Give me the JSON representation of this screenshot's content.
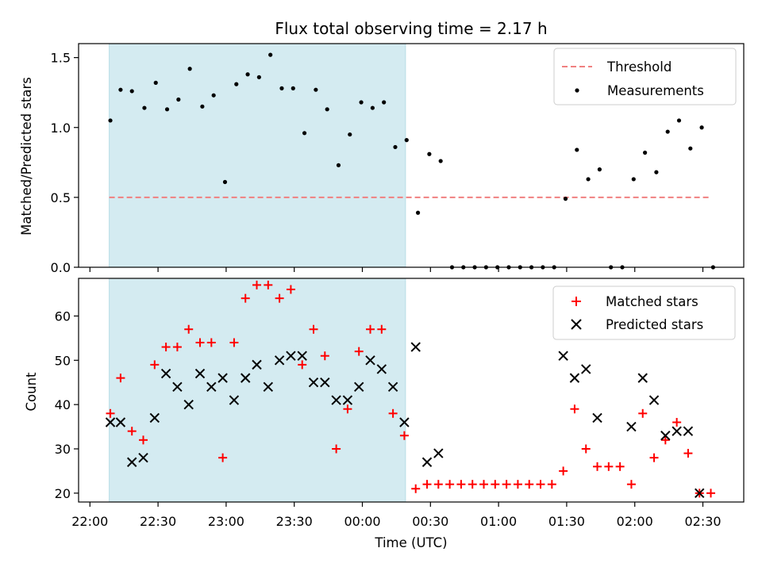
{
  "chart_data": {
    "type": "scatter",
    "title": "Flux total observing time = 2.17 h",
    "xlabel": "Time (UTC)",
    "x_tick_labels": [
      "22:00",
      "22:30",
      "23:00",
      "23:30",
      "00:00",
      "00:30",
      "01:00",
      "01:30",
      "02:00",
      "02:30"
    ],
    "x_tick_minutes": [
      0,
      30,
      60,
      90,
      120,
      150,
      180,
      210,
      240,
      270
    ],
    "xlim_minutes": [
      -5,
      288
    ],
    "shaded_span_minutes": [
      8.5,
      139
    ],
    "shaded_color": "#d4ebf1",
    "top_panel": {
      "ylabel": "Matched/Predicted stars",
      "ylim": [
        0,
        1.6
      ],
      "yticks": [
        "0.0",
        "0.5",
        "1.0",
        "1.5"
      ],
      "ytick_values": [
        0,
        0.5,
        1.0,
        1.5
      ],
      "threshold": {
        "name": "Threshold",
        "value": 0.5,
        "x_range_minutes": [
          8.5,
          273
        ],
        "color": "#f08080"
      },
      "measurements": {
        "name": "Measurements",
        "color": "#000000",
        "points": [
          [
            9,
            1.05
          ],
          [
            13.5,
            1.27
          ],
          [
            18.5,
            1.26
          ],
          [
            24,
            1.14
          ],
          [
            29,
            1.32
          ],
          [
            34,
            1.13
          ],
          [
            39,
            1.2
          ],
          [
            44,
            1.42
          ],
          [
            49.5,
            1.15
          ],
          [
            54.5,
            1.23
          ],
          [
            59.5,
            0.61
          ],
          [
            64.5,
            1.31
          ],
          [
            69.5,
            1.38
          ],
          [
            74.5,
            1.36
          ],
          [
            79.5,
            1.52
          ],
          [
            84.5,
            1.28
          ],
          [
            89.5,
            1.28
          ],
          [
            94.5,
            0.96
          ],
          [
            99.5,
            1.27
          ],
          [
            104.5,
            1.13
          ],
          [
            109.5,
            0.73
          ],
          [
            114.5,
            0.95
          ],
          [
            119.5,
            1.18
          ],
          [
            124.5,
            1.14
          ],
          [
            129.5,
            1.18
          ],
          [
            134.5,
            0.86
          ],
          [
            139.5,
            0.91
          ],
          [
            144.5,
            0.39
          ],
          [
            149.5,
            0.81
          ],
          [
            154.5,
            0.76
          ],
          [
            159.5,
            0
          ],
          [
            164.5,
            0
          ],
          [
            169.5,
            0
          ],
          [
            174.5,
            0
          ],
          [
            179.5,
            0
          ],
          [
            184.5,
            0
          ],
          [
            189.5,
            0
          ],
          [
            194.5,
            0
          ],
          [
            199.5,
            0
          ],
          [
            204.5,
            0
          ],
          [
            209.5,
            0.49
          ],
          [
            214.5,
            0.84
          ],
          [
            219.5,
            0.63
          ],
          [
            224.5,
            0.7
          ],
          [
            229.5,
            0
          ],
          [
            234.5,
            0
          ],
          [
            239.5,
            0.63
          ],
          [
            244.5,
            0.82
          ],
          [
            249.5,
            0.68
          ],
          [
            254.5,
            0.97
          ],
          [
            259.5,
            1.05
          ],
          [
            264.5,
            0.85
          ],
          [
            269.5,
            1.0
          ],
          [
            274.5,
            0
          ]
        ]
      },
      "legend_position": "upper-right"
    },
    "bottom_panel": {
      "ylabel": "Count",
      "ylim": [
        18,
        68.5
      ],
      "yticks": [
        "20",
        "30",
        "40",
        "50",
        "60"
      ],
      "ytick_values": [
        20,
        30,
        40,
        50,
        60
      ],
      "matched": {
        "name": "Matched stars",
        "color": "#ff0000",
        "marker": "plus",
        "points": [
          [
            9,
            38
          ],
          [
            13.5,
            46
          ],
          [
            18.5,
            34
          ],
          [
            23.5,
            32
          ],
          [
            28.5,
            49
          ],
          [
            33.5,
            53
          ],
          [
            38.5,
            53
          ],
          [
            43.5,
            57
          ],
          [
            48.5,
            54
          ],
          [
            53.5,
            54
          ],
          [
            58.5,
            28
          ],
          [
            63.5,
            54
          ],
          [
            68.5,
            64
          ],
          [
            73.5,
            67
          ],
          [
            78.5,
            67
          ],
          [
            83.5,
            64
          ],
          [
            88.5,
            66
          ],
          [
            93.5,
            49
          ],
          [
            98.5,
            57
          ],
          [
            103.5,
            51
          ],
          [
            108.5,
            30
          ],
          [
            113.5,
            39
          ],
          [
            118.5,
            52
          ],
          [
            123.5,
            57
          ],
          [
            128.5,
            57
          ],
          [
            133.5,
            38
          ],
          [
            138.5,
            33
          ],
          [
            143.5,
            21
          ],
          [
            148.5,
            22
          ],
          [
            153.5,
            22
          ],
          [
            158.5,
            22
          ],
          [
            163.5,
            22
          ],
          [
            168.5,
            22
          ],
          [
            173.5,
            22
          ],
          [
            178.5,
            22
          ],
          [
            183.5,
            22
          ],
          [
            188.5,
            22
          ],
          [
            193.5,
            22
          ],
          [
            198.5,
            22
          ],
          [
            203.5,
            22
          ],
          [
            208.5,
            25
          ],
          [
            213.5,
            39
          ],
          [
            218.5,
            30
          ],
          [
            223.5,
            26
          ],
          [
            228.5,
            26
          ],
          [
            233.5,
            26
          ],
          [
            238.5,
            22
          ],
          [
            243.5,
            38
          ],
          [
            248.5,
            28
          ],
          [
            253.5,
            32
          ],
          [
            258.5,
            36
          ],
          [
            263.5,
            29
          ],
          [
            268.5,
            20
          ],
          [
            273.5,
            20
          ]
        ]
      },
      "predicted": {
        "name": "Predicted stars",
        "color": "#000000",
        "marker": "x",
        "points": [
          [
            9,
            36
          ],
          [
            13.5,
            36
          ],
          [
            18.5,
            27
          ],
          [
            23.5,
            28
          ],
          [
            28.5,
            37
          ],
          [
            33.5,
            47
          ],
          [
            38.5,
            44
          ],
          [
            43.5,
            40
          ],
          [
            48.5,
            47
          ],
          [
            53.5,
            44
          ],
          [
            58.5,
            46
          ],
          [
            63.5,
            41
          ],
          [
            68.5,
            46
          ],
          [
            73.5,
            49
          ],
          [
            78.5,
            44
          ],
          [
            83.5,
            50
          ],
          [
            88.5,
            51
          ],
          [
            93.5,
            51
          ],
          [
            98.5,
            45
          ],
          [
            103.5,
            45
          ],
          [
            108.5,
            41
          ],
          [
            113.5,
            41
          ],
          [
            118.5,
            44
          ],
          [
            123.5,
            50
          ],
          [
            128.5,
            48
          ],
          [
            133.5,
            44
          ],
          [
            138.5,
            36
          ],
          [
            143.5,
            53
          ],
          [
            148.5,
            27
          ],
          [
            153.5,
            29
          ],
          [
            208.5,
            51
          ],
          [
            213.5,
            46
          ],
          [
            218.5,
            48
          ],
          [
            223.5,
            37
          ],
          [
            238.5,
            35
          ],
          [
            243.5,
            46
          ],
          [
            248.5,
            41
          ],
          [
            253.5,
            33
          ],
          [
            258.5,
            34
          ],
          [
            263.5,
            34
          ],
          [
            268.5,
            20
          ]
        ]
      },
      "legend_position": "upper-right"
    }
  }
}
